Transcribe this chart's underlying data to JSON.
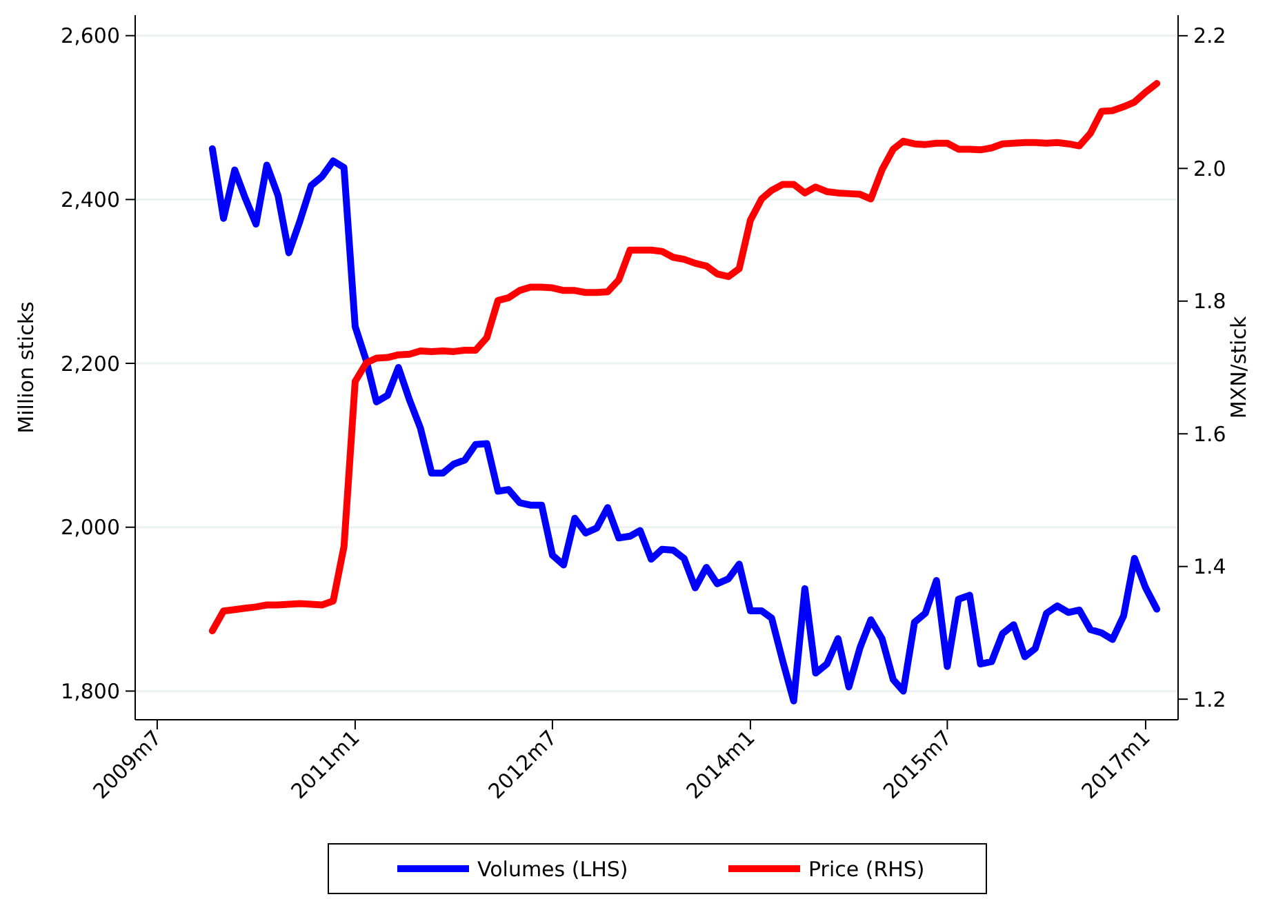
{
  "chart_data": {
    "type": "line",
    "x": [
      "2009-12",
      "2010-01",
      "2010-02",
      "2010-03",
      "2010-04",
      "2010-05",
      "2010-06",
      "2010-07",
      "2010-08",
      "2010-09",
      "2010-10",
      "2010-11",
      "2010-12",
      "2011-01",
      "2011-02",
      "2011-03",
      "2011-04",
      "2011-05",
      "2011-06",
      "2011-07",
      "2011-08",
      "2011-09",
      "2011-10",
      "2011-11",
      "2011-12",
      "2012-01",
      "2012-02",
      "2012-03",
      "2012-04",
      "2012-05",
      "2012-06",
      "2012-07",
      "2012-08",
      "2012-09",
      "2012-10",
      "2012-11",
      "2012-12",
      "2013-01",
      "2013-02",
      "2013-03",
      "2013-04",
      "2013-05",
      "2013-06",
      "2013-07",
      "2013-08",
      "2013-09",
      "2013-10",
      "2013-11",
      "2013-12",
      "2014-01",
      "2014-02",
      "2014-03",
      "2014-04",
      "2014-05",
      "2014-06",
      "2014-07",
      "2014-08",
      "2014-09",
      "2014-10",
      "2014-11",
      "2014-12",
      "2015-01",
      "2015-02",
      "2015-03",
      "2015-04",
      "2015-05",
      "2015-06",
      "2015-07",
      "2015-08",
      "2015-09",
      "2015-10",
      "2015-11",
      "2015-12",
      "2016-01",
      "2016-02",
      "2016-03",
      "2016-04",
      "2016-05",
      "2016-06",
      "2016-07",
      "2016-08",
      "2016-09",
      "2016-10",
      "2016-11",
      "2016-12",
      "2017-01",
      "2017-02"
    ],
    "series": [
      {
        "name": "Volumes (LHS)",
        "color": "#0000ff",
        "values": [
          2462,
          2377,
          2436,
          2403,
          2370,
          2442,
          2405,
          2335,
          2374,
          2417,
          2428,
          2447,
          2439,
          2245,
          2203,
          2153,
          2161,
          2195,
          2155,
          2121,
          2066,
          2066,
          2077,
          2082,
          2101,
          2102,
          2044,
          2046,
          2030,
          2027,
          2027,
          1966,
          1954,
          2011,
          1993,
          1999,
          2024,
          1987,
          1989,
          1996,
          1961,
          1973,
          1972,
          1962,
          1926,
          1951,
          1931,
          1937,
          1955,
          1898,
          1898,
          1889,
          1836,
          1788,
          1925,
          1822,
          1833,
          1864,
          1805,
          1853,
          1887,
          1864,
          1814,
          1800,
          1884,
          1895,
          1935,
          1830,
          1912,
          1917,
          1833,
          1836,
          1870,
          1881,
          1842,
          1852,
          1895,
          1904,
          1896,
          1899,
          1875,
          1871,
          1863,
          1892,
          1962,
          1926,
          1900
        ]
      },
      {
        "name": "Price (RHS)",
        "color": "#ff0000",
        "axis": "y2",
        "values": [
          1.303,
          1.333,
          1.335,
          1.337,
          1.339,
          1.342,
          1.342,
          1.343,
          1.344,
          1.343,
          1.342,
          1.348,
          1.43,
          1.679,
          1.707,
          1.714,
          1.715,
          1.719,
          1.72,
          1.725,
          1.724,
          1.725,
          1.724,
          1.726,
          1.726,
          1.745,
          1.801,
          1.805,
          1.816,
          1.821,
          1.821,
          1.82,
          1.816,
          1.816,
          1.813,
          1.813,
          1.814,
          1.832,
          1.877,
          1.877,
          1.877,
          1.875,
          1.866,
          1.863,
          1.857,
          1.853,
          1.841,
          1.837,
          1.849,
          1.922,
          1.954,
          1.967,
          1.976,
          1.976,
          1.963,
          1.972,
          1.965,
          1.963,
          1.962,
          1.961,
          1.954,
          1.998,
          2.029,
          2.041,
          2.037,
          2.036,
          2.038,
          2.038,
          2.029,
          2.029,
          2.028,
          2.031,
          2.037,
          2.038,
          2.039,
          2.039,
          2.038,
          2.039,
          2.037,
          2.034,
          2.053,
          2.086,
          2.087,
          2.093,
          2.1,
          2.115,
          2.128
        ]
      }
    ],
    "ylabel": "Million sticks",
    "y2label": "MXN/stick",
    "xlim": [
      "2009-05",
      "2017-04"
    ],
    "xticks": [
      {
        "value": "2009-07",
        "label": "2009m7"
      },
      {
        "value": "2011-01",
        "label": "2011m1"
      },
      {
        "value": "2012-07",
        "label": "2012m7"
      },
      {
        "value": "2014-01",
        "label": "2014m1"
      },
      {
        "value": "2015-07",
        "label": "2015m7"
      },
      {
        "value": "2017-01",
        "label": "2017m1"
      }
    ],
    "ylim": [
      1765,
      2625
    ],
    "yticks": [
      {
        "value": 1800,
        "label": "1,800"
      },
      {
        "value": 2000,
        "label": "2,000"
      },
      {
        "value": 2200,
        "label": "2,200"
      },
      {
        "value": 2400,
        "label": "2,400"
      },
      {
        "value": 2600,
        "label": "2,600"
      }
    ],
    "y2lim": [
      1.169,
      2.231
    ],
    "y2ticks": [
      {
        "value": 1.2,
        "label": "1.2"
      },
      {
        "value": 1.4,
        "label": "1.4"
      },
      {
        "value": 1.6,
        "label": "1.6"
      },
      {
        "value": 1.8,
        "label": "1.8"
      },
      {
        "value": 2.0,
        "label": "2.0"
      },
      {
        "value": 2.2,
        "label": "2.2"
      }
    ],
    "grid": "y",
    "legend": "bottom",
    "marker": "none",
    "line_style": "solid"
  }
}
